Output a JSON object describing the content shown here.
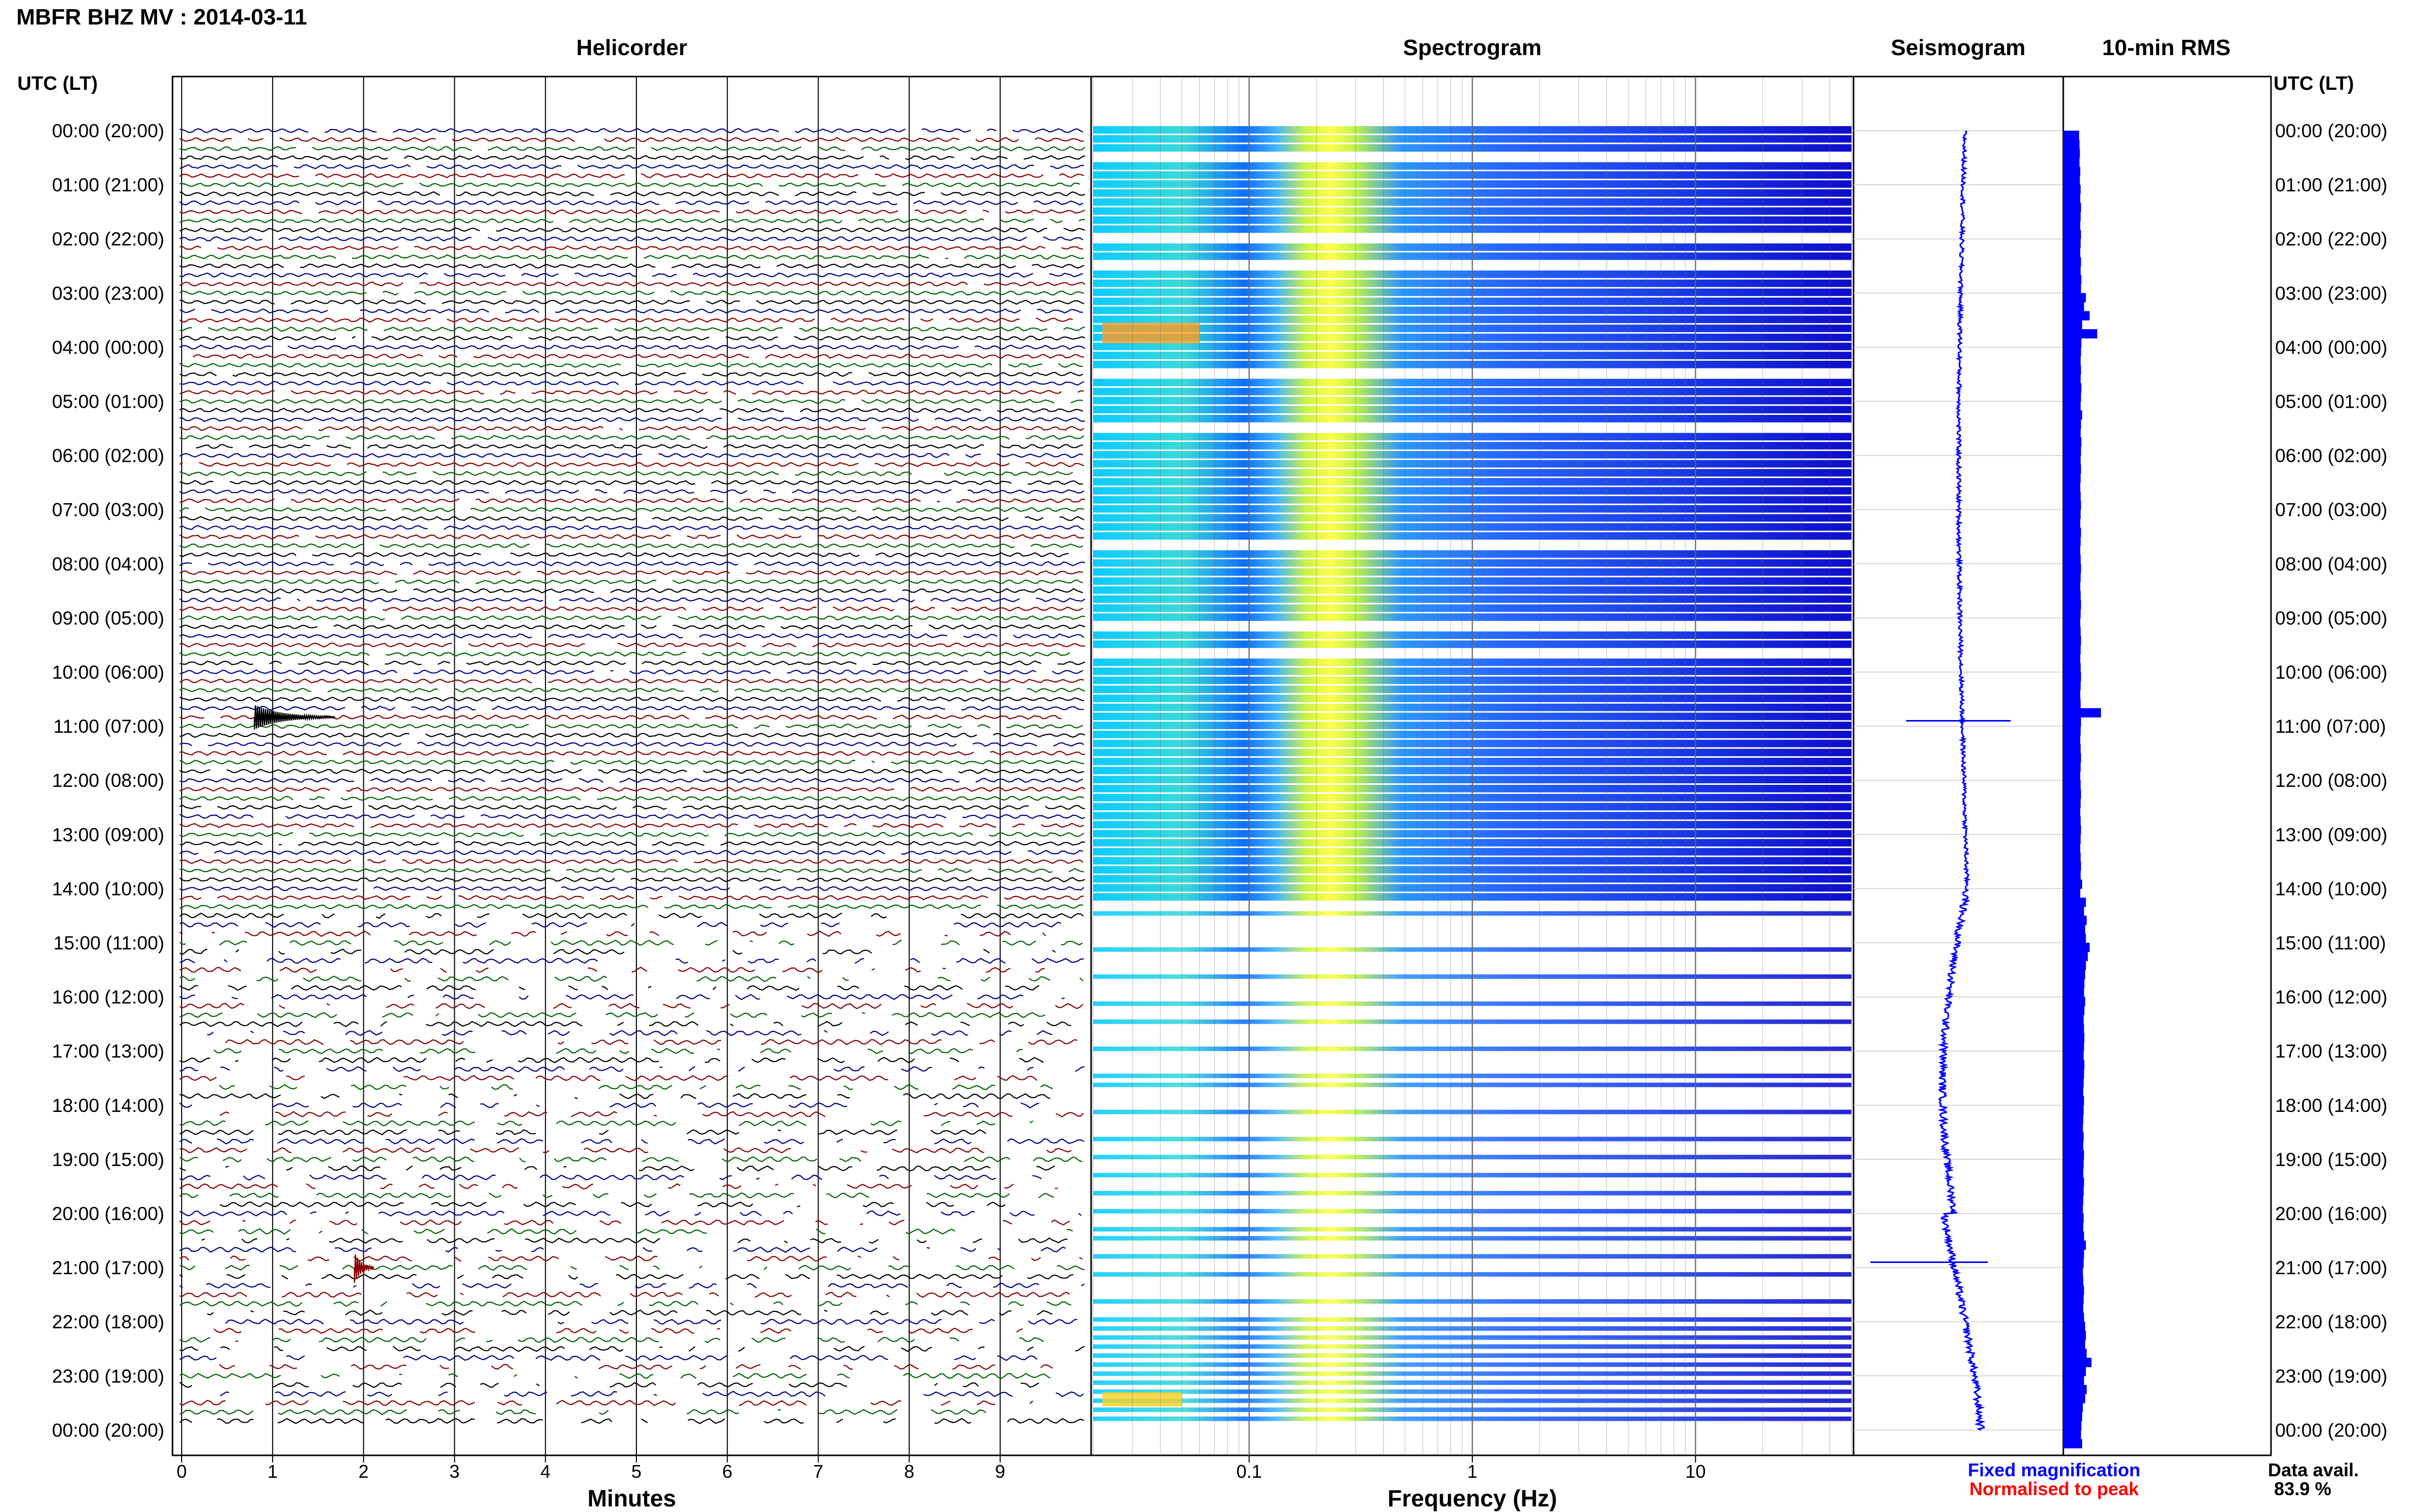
{
  "header": {
    "title": "MBFR BHZ MV : 2014-03-11",
    "left_axis_label": "UTC (LT)",
    "right_axis_label": "UTC (LT)"
  },
  "panels": {
    "helicorder": "Helicorder",
    "spectrogram": "Spectrogram",
    "seismogram": "Seismogram",
    "rms": "10-min RMS"
  },
  "axes": {
    "helicorder_xlabel": "Minutes",
    "spectrogram_xlabel": "Frequency (Hz)",
    "helicorder_ticks": [
      "0",
      "1",
      "2",
      "3",
      "4",
      "5",
      "6",
      "7",
      "8",
      "9"
    ],
    "spectrogram_ticks": [
      "0.1",
      "1",
      "10"
    ],
    "time_labels": [
      "00:00 (20:00)",
      "01:00 (21:00)",
      "02:00 (22:00)",
      "03:00 (23:00)",
      "04:00 (00:00)",
      "05:00 (01:00)",
      "06:00 (02:00)",
      "07:00 (03:00)",
      "08:00 (04:00)",
      "09:00 (05:00)",
      "10:00 (06:00)",
      "11:00 (07:00)",
      "12:00 (08:00)",
      "13:00 (09:00)",
      "14:00 (10:00)",
      "15:00 (11:00)",
      "16:00 (12:00)",
      "17:00 (13:00)",
      "18:00 (14:00)",
      "19:00 (15:00)",
      "20:00 (16:00)",
      "21:00 (17:00)",
      "22:00 (18:00)",
      "23:00 (19:00)",
      "00:00 (20:00)"
    ]
  },
  "legend": {
    "fixed": "Fixed magnification",
    "normalised": "Normalised to peak",
    "fixed_color": "#0000ff",
    "normalised_color": "#ff0000"
  },
  "availability": {
    "label": "Data avail.",
    "value": "83.9 %"
  },
  "colors": {
    "trace_cycle": [
      "#00008b",
      "#8b0000",
      "#006400",
      "#000000"
    ],
    "seismogram": "#0000ff",
    "rms": "#0000ff"
  },
  "chart_data": {
    "type": "heatmap",
    "station": "MBFR BHZ MV",
    "date": "2014-03-11",
    "rows_per_hour": 6,
    "helicorder_minutes_range": [
      0,
      10
    ],
    "spectrogram_freq_range_hz": [
      0.02,
      50
    ],
    "spectrogram_scale": "log",
    "spectrogram_peak_band_hz": [
      0.18,
      0.3
    ],
    "data_availability_percent": 83.9,
    "notable_events": [
      {
        "time_utc": "10:50",
        "minute": 0.8,
        "color": "black"
      },
      {
        "time_utc": "21:00",
        "minute": 1.9,
        "color": "dark red"
      }
    ],
    "rms_relative": [
      0.42,
      0.43,
      0.44,
      0.43,
      0.45,
      0.44,
      0.46,
      0.45,
      0.47,
      0.46,
      0.45,
      0.47,
      0.46,
      0.45,
      0.47,
      0.46,
      0.48,
      0.47,
      0.6,
      0.55,
      0.7,
      0.5,
      0.9,
      0.48,
      0.47,
      0.46,
      0.47,
      0.46,
      0.48,
      0.47,
      0.46,
      0.5,
      0.47,
      0.46,
      0.48,
      0.47,
      0.46,
      0.47,
      0.46,
      0.45,
      0.46,
      0.47,
      0.46,
      0.45,
      0.47,
      0.46,
      0.45,
      0.46,
      0.47,
      0.46,
      0.45,
      0.46,
      0.47,
      0.46,
      0.45,
      0.46,
      0.47,
      0.46,
      0.45,
      0.46,
      0.47,
      0.46,
      0.45,
      0.46,
      1.0,
      0.47,
      0.46,
      0.45,
      0.46,
      0.47,
      0.46,
      0.45,
      0.46,
      0.47,
      0.46,
      0.45,
      0.46,
      0.47,
      0.46,
      0.45,
      0.46,
      0.47,
      0.46,
      0.5,
      0.45,
      0.6,
      0.55,
      0.62,
      0.58,
      0.6,
      0.7,
      0.65,
      0.6,
      0.58,
      0.56,
      0.55,
      0.58,
      0.56,
      0.54,
      0.55,
      0.56,
      0.55,
      0.54,
      0.56,
      0.55,
      0.54,
      0.53,
      0.55,
      0.54,
      0.53,
      0.52,
      0.54,
      0.53,
      0.55,
      0.54,
      0.53,
      0.55,
      0.54,
      0.53,
      0.52,
      0.54,
      0.53,
      0.55,
      0.6,
      0.55,
      0.54,
      0.52,
      0.53,
      0.55,
      0.54,
      0.53,
      0.55,
      0.58,
      0.6,
      0.58,
      0.62,
      0.75,
      0.6,
      0.55,
      0.62,
      0.58,
      0.52,
      0.5,
      0.48,
      0.47,
      0.5
    ]
  }
}
